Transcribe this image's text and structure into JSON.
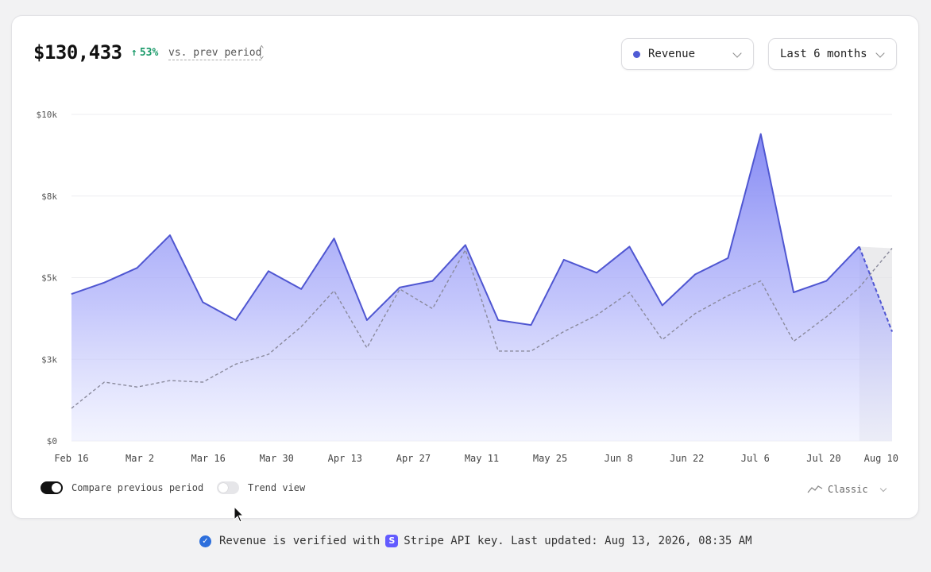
{
  "header": {
    "total": "$130,433",
    "change_arrow": "↑",
    "change_pct": "53%",
    "compare_label": "vs. prev period",
    "compare_sort_icon": "sort-updown-icon"
  },
  "filters": {
    "metric": {
      "label": "Revenue",
      "color": "#4f5bd5"
    },
    "range": {
      "label": "Last 6 months"
    }
  },
  "controls": {
    "compare_toggle": {
      "label": "Compare previous period",
      "on": true
    },
    "trend_toggle": {
      "label": "Trend view",
      "on": false
    },
    "style_select": {
      "label": "Classic",
      "icon": "line-chart-icon"
    }
  },
  "footer": {
    "text_before": "Revenue is verified with",
    "stripe_letter": "S",
    "text_after": "Stripe API key. Last updated: Aug 13, 2026, 08:35 AM"
  },
  "chart_data": {
    "type": "area",
    "y_ticks": [
      0,
      2500,
      5000,
      7500,
      10000
    ],
    "y_tick_labels": [
      "$0",
      "$3k",
      "$5k",
      "$8k",
      "$10k"
    ],
    "ylim": [
      0,
      10000
    ],
    "x_tick_labels": [
      "Feb 16",
      "Mar 2",
      "Mar 16",
      "Mar 30",
      "Apr 13",
      "Apr 27",
      "May 11",
      "May 25",
      "Jun 8",
      "Jun 22",
      "Jul 6",
      "Jul 20",
      "Aug 10"
    ],
    "grid": true,
    "colors": {
      "current": "#4f56d1",
      "fill_top": "#8c90f5",
      "previous": "#8a8a9c",
      "projection_fill": "#e3e3e6"
    },
    "series": [
      {
        "name": "Revenue",
        "values": [
          4500,
          4850,
          5300,
          6300,
          4250,
          3700,
          5200,
          4650,
          6200,
          3700,
          4700,
          4900,
          6000,
          3700,
          3550,
          5550,
          5150,
          5950,
          4150,
          5100,
          5600,
          9400,
          4550,
          4900,
          5950,
          3350
        ],
        "last_point_projected": true
      },
      {
        "values": [
          1000,
          1800,
          1650,
          1850,
          1800,
          2350,
          2650,
          3500,
          4600,
          2850,
          4650,
          4050,
          5850,
          2750,
          2750,
          3350,
          3850,
          4550,
          3100,
          3900,
          4450,
          4900,
          3050,
          3800,
          4700,
          5900
        ],
        "style": "dashed"
      }
    ]
  }
}
